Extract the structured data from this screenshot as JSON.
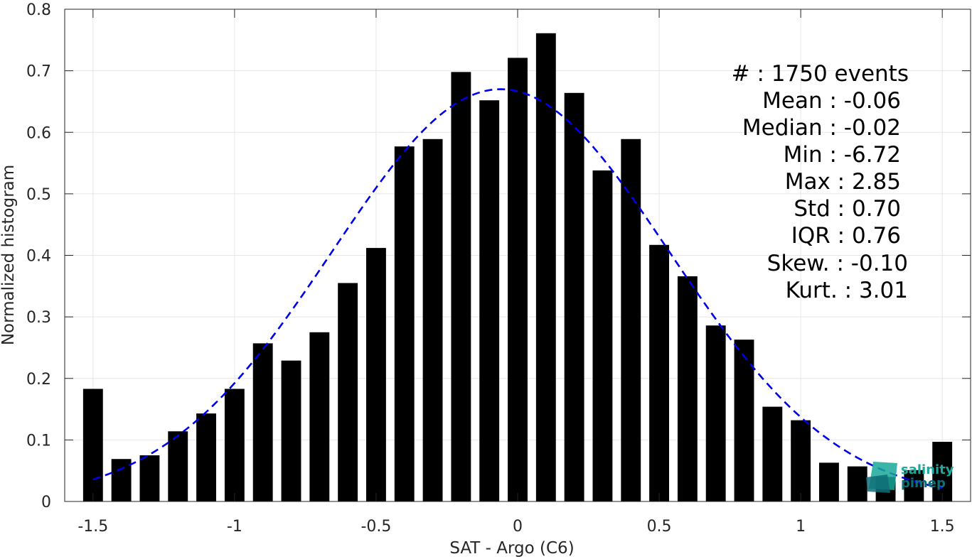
{
  "chart_data": {
    "type": "bar",
    "xlabel": "SAT - Argo (C6)",
    "ylabel": "Normalized histogram",
    "xlim": [
      -1.6,
      1.6
    ],
    "ylim": [
      0,
      0.8
    ],
    "grid": true,
    "x_ticks": [
      -1.5,
      -1,
      -0.5,
      0,
      0.5,
      1,
      1.5
    ],
    "x_tick_labels": [
      "-1.5",
      "-1",
      "-0.5",
      "0",
      "0.5",
      "1",
      "1.5"
    ],
    "y_ticks": [
      0,
      0.1,
      0.2,
      0.3,
      0.4,
      0.5,
      0.6,
      0.7,
      0.8
    ],
    "y_tick_labels": [
      "0",
      "0.1",
      "0.2",
      "0.3",
      "0.4",
      "0.5",
      "0.6",
      "0.7",
      "0.8"
    ],
    "bar_width": 0.07,
    "x": [
      -1.5,
      -1.4,
      -1.3,
      -1.2,
      -1.1,
      -1.0,
      -0.9,
      -0.8,
      -0.7,
      -0.6,
      -0.5,
      -0.4,
      -0.3,
      -0.2,
      -0.1,
      0.0,
      0.1,
      0.2,
      0.3,
      0.4,
      0.5,
      0.6,
      0.7,
      0.8,
      0.9,
      1.0,
      1.1,
      1.2,
      1.3,
      1.4,
      1.5
    ],
    "values": [
      0.183,
      0.069,
      0.075,
      0.114,
      0.143,
      0.183,
      0.257,
      0.229,
      0.275,
      0.355,
      0.412,
      0.577,
      0.589,
      0.698,
      0.652,
      0.721,
      0.761,
      0.664,
      0.538,
      0.589,
      0.417,
      0.366,
      0.286,
      0.263,
      0.154,
      0.132,
      0.063,
      0.057,
      0.04,
      0.051,
      0.097
    ],
    "bar_color": "#000000",
    "fit_curve": {
      "style": "dashed",
      "color": "#0000e6",
      "mean": -0.06,
      "std": 0.595,
      "peak": 0.67
    },
    "annotations": [
      "#  : 1750 events",
      "Mean : -0.06",
      "Median : -0.02",
      "Min : -6.72",
      "Max : 2.85",
      "Std : 0.70",
      "IQR : 0.76",
      "Skew. : -0.10",
      "Kurt. : 3.01"
    ]
  },
  "logo": {
    "line1": "salinity",
    "line2": "pimep",
    "color_line1": "#1aa89a",
    "color_line2": "#0f6f78"
  }
}
